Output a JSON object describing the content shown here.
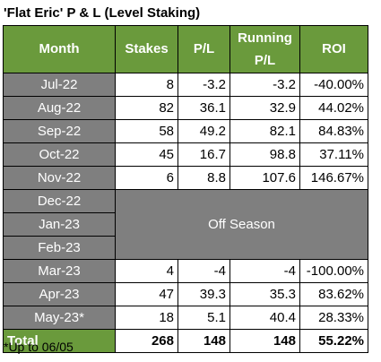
{
  "title": "'Flat Eric' P & L (Level Staking)",
  "header": {
    "month": "Month",
    "stakes": "Stakes",
    "pl": "P/L",
    "running_line1": "Running",
    "running_line2": "P/L",
    "roi": "ROI"
  },
  "rows_top": [
    {
      "month": "Jul-22",
      "stakes": "8",
      "pl": "-3.2",
      "running": "-3.2",
      "roi": "-40.00%"
    },
    {
      "month": "Aug-22",
      "stakes": "82",
      "pl": "36.1",
      "running": "32.9",
      "roi": "44.02%"
    },
    {
      "month": "Sep-22",
      "stakes": "58",
      "pl": "49.2",
      "running": "82.1",
      "roi": "84.83%"
    },
    {
      "month": "Oct-22",
      "stakes": "45",
      "pl": "16.7",
      "running": "98.8",
      "roi": "37.11%"
    },
    {
      "month": "Nov-22",
      "stakes": "6",
      "pl": "8.8",
      "running": "107.6",
      "roi": "146.67%"
    }
  ],
  "off_season": {
    "months": [
      "Dec-22",
      "Jan-23",
      "Feb-23"
    ],
    "label": "Off Season"
  },
  "rows_bottom": [
    {
      "month": "Mar-23",
      "stakes": "4",
      "pl": "-4",
      "running": "-4",
      "roi": "-100.00%"
    },
    {
      "month": "Apr-23",
      "stakes": "47",
      "pl": "39.3",
      "running": "35.3",
      "roi": "83.62%"
    },
    {
      "month": "May-23*",
      "stakes": "18",
      "pl": "5.1",
      "running": "40.4",
      "roi": "28.33%"
    }
  ],
  "total": {
    "label": "Total",
    "stakes": "268",
    "pl": "148",
    "running": "148",
    "roi": "55.22%"
  },
  "footnote": "*Up to 06/05",
  "colors": {
    "header_green": "#6a9a3c",
    "month_grey": "#7f7f7f"
  }
}
